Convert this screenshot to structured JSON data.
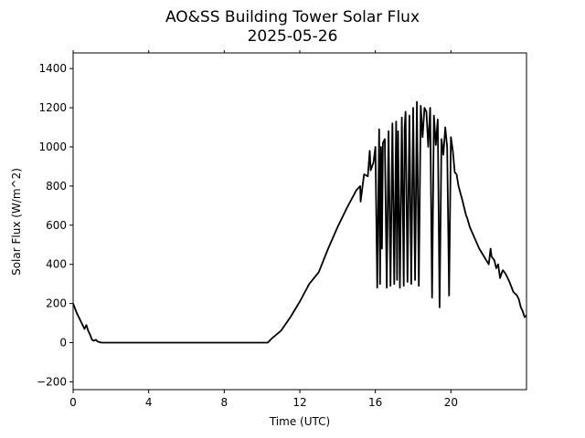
{
  "chart_data": {
    "type": "line",
    "title": "AO&SS Building Tower Solar Flux",
    "subtitle": "2025-05-26",
    "xlabel": "Time (UTC)",
    "ylabel": "Solar Flux (W/m^2)",
    "xlim": [
      0,
      24
    ],
    "ylim": [
      -240,
      1480
    ],
    "xticks": [
      0,
      4,
      8,
      12,
      16,
      20
    ],
    "yticks": [
      -200,
      0,
      200,
      400,
      600,
      800,
      1000,
      1200,
      1400
    ],
    "grid": false,
    "line_color": "#000000",
    "series": [
      {
        "x": [
          0,
          0.2,
          0.4,
          0.55,
          0.6,
          0.7,
          0.8,
          0.9,
          1.0,
          1.1,
          1.2,
          1.3,
          1.5,
          2,
          4,
          6,
          8,
          10,
          10.3,
          10.5,
          11,
          11.5,
          12,
          12.5,
          13,
          13.5,
          14,
          14.5,
          15,
          15.2,
          15.22,
          15.4,
          15.6,
          15.7,
          15.75,
          15.9,
          16.0,
          16.1,
          16.2,
          16.25,
          16.3,
          16.35,
          16.4,
          16.5,
          16.6,
          16.7,
          16.8,
          16.9,
          17.0,
          17.1,
          17.15,
          17.2,
          17.3,
          17.4,
          17.5,
          17.55,
          17.6,
          17.7,
          17.8,
          17.9,
          18.0,
          18.1,
          18.2,
          18.3,
          18.4,
          18.5,
          18.6,
          18.7,
          18.8,
          18.9,
          19.0,
          19.1,
          19.2,
          19.3,
          19.4,
          19.5,
          19.6,
          19.7,
          19.8,
          19.9,
          20.0,
          20.1,
          20.2,
          20.3,
          20.4,
          20.6,
          20.8,
          20.85,
          21,
          21.5,
          22,
          22.1,
          22.15,
          22.3,
          22.4,
          22.5,
          22.6,
          22.7,
          22.75,
          22.9,
          23.1,
          23.3,
          23.5,
          23.6,
          23.7,
          23.8,
          23.9,
          24.0
        ],
        "values": [
          200,
          150,
          110,
          80,
          70,
          90,
          60,
          40,
          15,
          10,
          15,
          5,
          0,
          0,
          0,
          0,
          0,
          0,
          0,
          20,
          60,
          130,
          210,
          300,
          360,
          480,
          590,
          690,
          780,
          800,
          720,
          860,
          850,
          980,
          880,
          920,
          1000,
          280,
          1090,
          300,
          1000,
          480,
          1020,
          1040,
          280,
          1080,
          290,
          1120,
          300,
          1130,
          320,
          1080,
          280,
          1150,
          290,
          1100,
          1180,
          310,
          1160,
          300,
          1200,
          320,
          1230,
          290,
          1210,
          1050,
          1200,
          1180,
          1000,
          1200,
          230,
          1160,
          1010,
          1140,
          180,
          1040,
          960,
          1100,
          1000,
          240,
          1050,
          980,
          870,
          860,
          800,
          730,
          650,
          640,
          590,
          480,
          400,
          480,
          440,
          420,
          380,
          400,
          330,
          360,
          370,
          350,
          310,
          260,
          240,
          220,
          180,
          160,
          130,
          140
        ]
      }
    ]
  }
}
